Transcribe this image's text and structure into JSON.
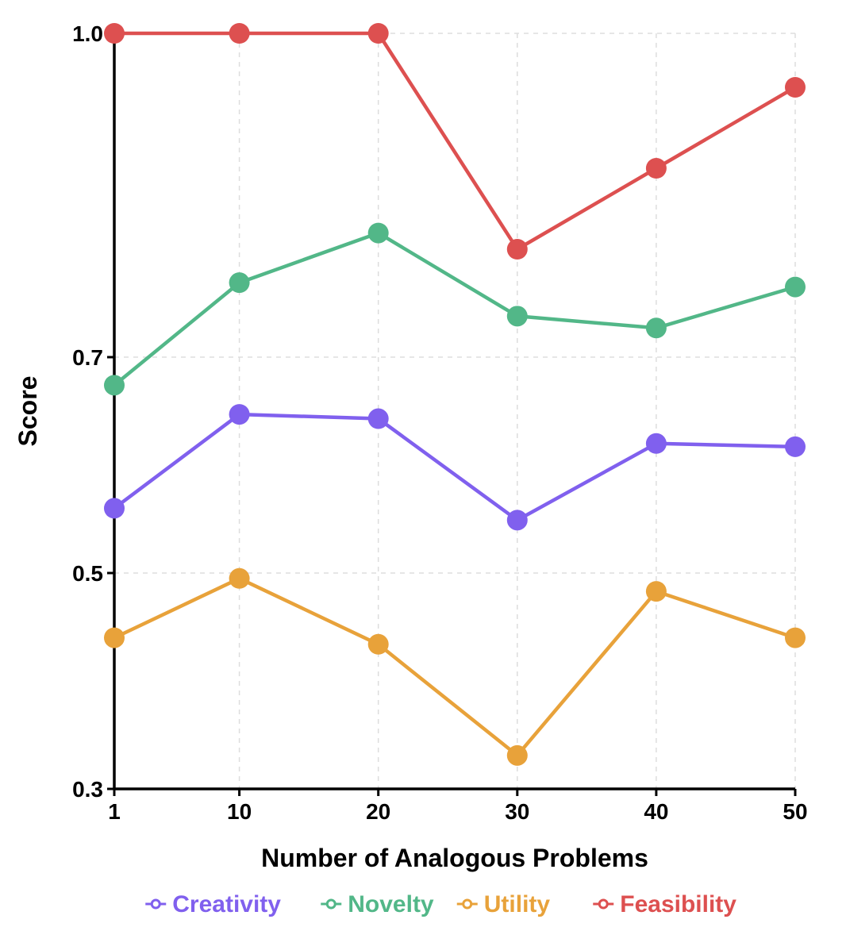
{
  "chart_data": {
    "type": "line",
    "xlabel": "Number of Analogous Problems",
    "ylabel": "Score",
    "x": [
      1,
      10,
      20,
      30,
      40,
      50
    ],
    "x_tick_labels": [
      "1",
      "10",
      "20",
      "30",
      "40",
      "50"
    ],
    "yticks": [
      0.3,
      0.5,
      0.7,
      1.0
    ],
    "y_tick_labels": [
      "0.3",
      "0.5",
      "0.7",
      "1.0"
    ],
    "ylim": [
      0.3,
      1.0
    ],
    "grid": true,
    "legend_position": "bottom",
    "series": [
      {
        "name": "Creativity",
        "color": "#8060ee",
        "values": [
          0.56,
          0.647,
          0.643,
          0.549,
          0.62,
          0.617
        ]
      },
      {
        "name": "Novelty",
        "color": "#52b788",
        "values": [
          0.674,
          0.769,
          0.815,
          0.738,
          0.727,
          0.765
        ]
      },
      {
        "name": "Utility",
        "color": "#e8a23a",
        "values": [
          0.44,
          0.495,
          0.434,
          0.331,
          0.483,
          0.44
        ]
      },
      {
        "name": "Feasibility",
        "color": "#dd5050",
        "values": [
          1.0,
          1.0,
          1.0,
          0.8,
          0.875,
          0.95
        ]
      }
    ]
  }
}
